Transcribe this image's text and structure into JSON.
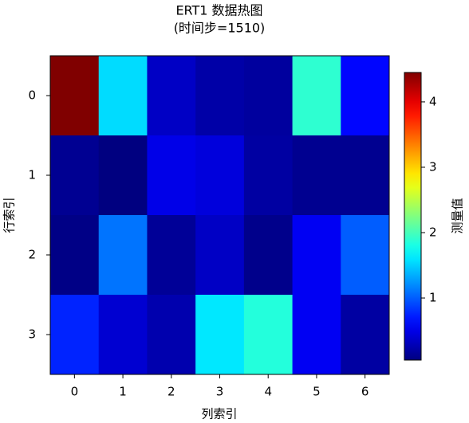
{
  "chart_data": {
    "type": "heatmap",
    "title": "ERT1  数据热图",
    "subtitle": "(时间步=1510)",
    "x_label": "列索引",
    "y_label": "行索引",
    "x": [
      0,
      1,
      2,
      3,
      4,
      5,
      6
    ],
    "y": [
      0,
      1,
      2,
      3
    ],
    "values": [
      [
        4.45,
        1.55,
        0.35,
        0.22,
        0.18,
        1.9,
        0.62
      ],
      [
        0.13,
        0.05,
        0.5,
        0.45,
        0.2,
        0.12,
        0.12
      ],
      [
        0.08,
        1.1,
        0.15,
        0.35,
        0.1,
        0.55,
        1.0
      ],
      [
        0.75,
        0.4,
        0.25,
        1.6,
        1.85,
        0.55,
        0.2
      ]
    ],
    "colormap": "jet",
    "colorbar": {
      "label": "测量值",
      "lim": [
        0.05,
        4.45
      ],
      "ticks": [
        1,
        2,
        3,
        4
      ]
    }
  }
}
